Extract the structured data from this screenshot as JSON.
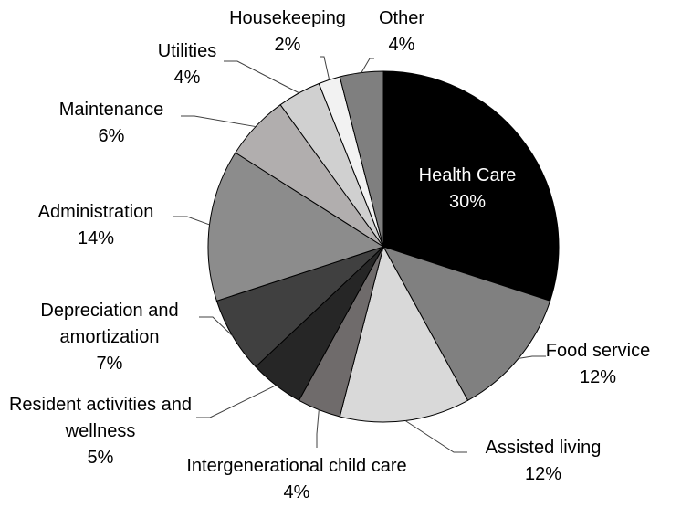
{
  "chart_data": {
    "type": "pie",
    "categories": [
      "Health Care",
      "Food service",
      "Assisted living",
      "Intergenerational child care",
      "Resident activities and wellness",
      "Depreciation and amortization",
      "Administration",
      "Maintenance",
      "Utilities",
      "Housekeeping",
      "Other"
    ],
    "values": [
      30,
      12,
      12,
      4,
      5,
      7,
      14,
      6,
      4,
      2,
      4
    ],
    "value_labels": [
      "30%",
      "12%",
      "12%",
      "4%",
      "5%",
      "7%",
      "14%",
      "6%",
      "4%",
      "2%",
      "4%"
    ],
    "colors": [
      "#000000",
      "#808080",
      "#d9d9d9",
      "#6f6b6b",
      "#262626",
      "#404040",
      "#8c8c8c",
      "#b1aeae",
      "#d0d0d0",
      "#f2f2f2",
      "#7f7f7f"
    ]
  }
}
